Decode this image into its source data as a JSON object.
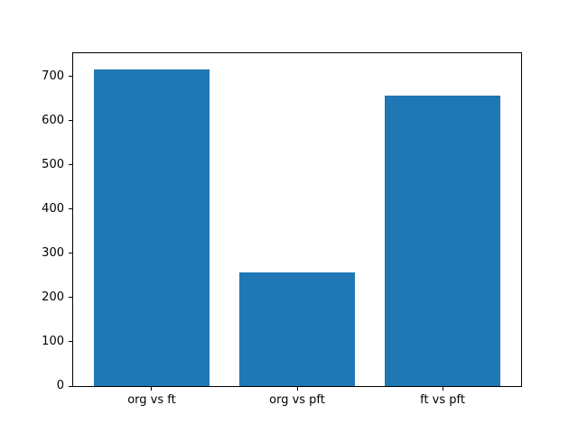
{
  "chart_data": {
    "type": "bar",
    "title": "",
    "xlabel": "",
    "ylabel": "",
    "categories": [
      "org vs ft",
      "org vs pft",
      "ft vs pft"
    ],
    "values": [
      717,
      258,
      658
    ],
    "yticks": [
      0,
      100,
      200,
      300,
      400,
      500,
      600,
      700
    ],
    "ylim": [
      0,
      753
    ],
    "xlim": [
      -0.54,
      2.54
    ],
    "bar_width": 0.8,
    "bar_color": "#1f77b4",
    "spine_color": "#000000",
    "text_color": "#000000",
    "background_color": "#ffffff",
    "grid": false,
    "legend": "none"
  }
}
